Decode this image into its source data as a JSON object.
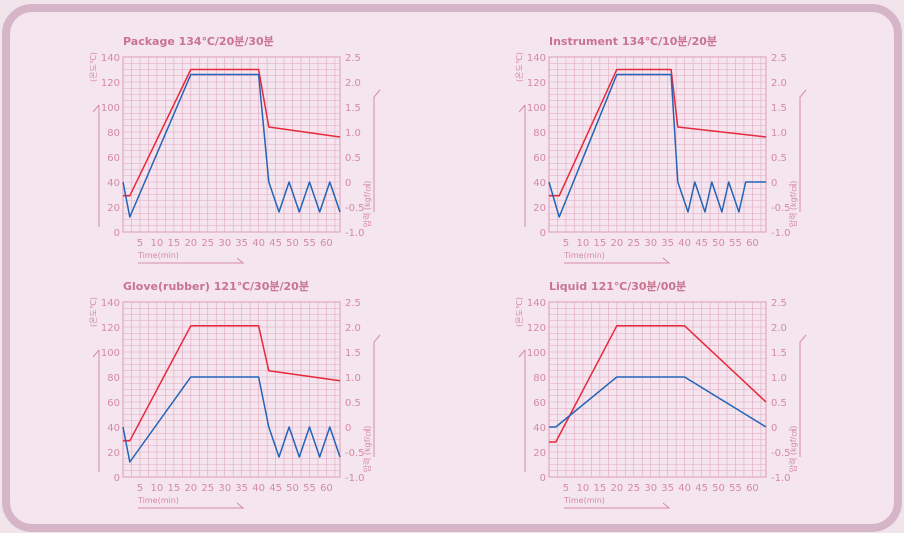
{
  "colors": {
    "background": "#f1e4eb",
    "panel": "#f4e5ee",
    "panel_border": "#d6b5c9",
    "grid": "#e2a9bf",
    "axis_text": "#d68aa5",
    "title": "#c9738f",
    "temperature_line": "#e8283c",
    "pressure_line": "#2364b7"
  },
  "chart_data": [
    {
      "type": "line",
      "title": "Package 134℃/20분/30분",
      "xlabel": "Time(min)",
      "ylabel_left": "(온도℃)",
      "ylabel_right": "압력 (kgf/㎠)",
      "xlim": [
        0,
        64
      ],
      "ylim_left": [
        0,
        140
      ],
      "ylim_right": [
        -1.0,
        2.5
      ],
      "x_ticks": [
        "5",
        "10",
        "15",
        "20",
        "25",
        "30",
        "35",
        "40",
        "45",
        "50",
        "55",
        "60"
      ],
      "y_ticks_left": [
        "0",
        "20",
        "40",
        "60",
        "80",
        "100",
        "120",
        "140"
      ],
      "y_ticks_right": [
        "-1.0",
        "-0.5",
        "0",
        "0.5",
        "1.0",
        "1.5",
        "2.0",
        "2.5"
      ],
      "grid": true,
      "series": [
        {
          "color": "#e8283c",
          "axis": "left",
          "x": [
            0,
            2,
            20,
            40,
            43,
            64
          ],
          "y": [
            29,
            29,
            130,
            130,
            84,
            76
          ]
        },
        {
          "color": "#2364b7",
          "axis": "right",
          "x": [
            0,
            2,
            20,
            40,
            43,
            46,
            49,
            52,
            55,
            58,
            61,
            64
          ],
          "y": [
            0,
            -0.7,
            2.15,
            2.15,
            0,
            -0.6,
            0,
            -0.6,
            0,
            -0.6,
            0,
            -0.6
          ]
        }
      ]
    },
    {
      "type": "line",
      "title": "Instrument 134℃/10분/20분",
      "xlabel": "Time(min)",
      "ylabel_left": "(온도℃)",
      "ylabel_right": "압력 (kgf/㎠)",
      "xlim": [
        0,
        64
      ],
      "ylim_left": [
        0,
        140
      ],
      "ylim_right": [
        -1.0,
        2.5
      ],
      "x_ticks": [
        "5",
        "10",
        "15",
        "20",
        "25",
        "30",
        "35",
        "40",
        "45",
        "50",
        "55",
        "60"
      ],
      "y_ticks_left": [
        "0",
        "20",
        "40",
        "60",
        "80",
        "100",
        "120",
        "140"
      ],
      "y_ticks_right": [
        "-1.0",
        "-0.5",
        "0",
        "0.5",
        "1.0",
        "1.5",
        "2.0",
        "2.5"
      ],
      "grid": true,
      "series": [
        {
          "color": "#e8283c",
          "axis": "left",
          "x": [
            0,
            3,
            20,
            36,
            38,
            64
          ],
          "y": [
            29,
            29,
            130,
            130,
            84,
            76
          ]
        },
        {
          "color": "#2364b7",
          "axis": "right",
          "x": [
            0,
            3,
            20,
            36,
            38,
            41,
            43,
            46,
            48,
            51,
            53,
            56,
            58,
            64
          ],
          "y": [
            0,
            -0.7,
            2.15,
            2.15,
            0,
            -0.6,
            0,
            -0.6,
            0,
            -0.6,
            0,
            -0.6,
            0,
            0
          ]
        }
      ]
    },
    {
      "type": "line",
      "title": "Glove(rubber) 121℃/30분/20분",
      "xlabel": "Time(min)",
      "ylabel_left": "(온도℃)",
      "ylabel_right": "압력 (kgf/㎠)",
      "xlim": [
        0,
        64
      ],
      "ylim_left": [
        0,
        140
      ],
      "ylim_right": [
        -1.0,
        2.5
      ],
      "x_ticks": [
        "5",
        "10",
        "15",
        "20",
        "25",
        "30",
        "35",
        "40",
        "45",
        "50",
        "55",
        "60"
      ],
      "y_ticks_left": [
        "0",
        "20",
        "40",
        "60",
        "80",
        "100",
        "120",
        "140"
      ],
      "y_ticks_right": [
        "-1.0",
        "-0.5",
        "0",
        "0.5",
        "1.0",
        "1.5",
        "2.0",
        "2.5"
      ],
      "grid": true,
      "series": [
        {
          "color": "#e8283c",
          "axis": "left",
          "x": [
            0,
            2,
            20,
            40,
            43,
            64
          ],
          "y": [
            29,
            29,
            121,
            121,
            85,
            77
          ]
        },
        {
          "color": "#2364b7",
          "axis": "right",
          "x": [
            0,
            2,
            20,
            40,
            43,
            46,
            49,
            52,
            55,
            58,
            61,
            64
          ],
          "y": [
            0,
            -0.7,
            1.0,
            1.0,
            0,
            -0.6,
            0,
            -0.6,
            0,
            -0.6,
            0,
            -0.6
          ]
        }
      ]
    },
    {
      "type": "line",
      "title": "Liquid 121℃/30분/00분",
      "xlabel": "Time(min)",
      "ylabel_left": "(온도℃)",
      "ylabel_right": "압력 (kgf/㎠)",
      "xlim": [
        0,
        64
      ],
      "ylim_left": [
        0,
        140
      ],
      "ylim_right": [
        -1.0,
        2.5
      ],
      "x_ticks": [
        "5",
        "10",
        "15",
        "20",
        "25",
        "30",
        "35",
        "40",
        "45",
        "50",
        "55",
        "60"
      ],
      "y_ticks_left": [
        "0",
        "20",
        "40",
        "60",
        "80",
        "100",
        "120",
        "140"
      ],
      "y_ticks_right": [
        "-1.0",
        "-0.5",
        "0",
        "0.5",
        "1.0",
        "1.5",
        "2.0",
        "2.5"
      ],
      "grid": true,
      "series": [
        {
          "color": "#e8283c",
          "axis": "left",
          "x": [
            0,
            2,
            20,
            40,
            64
          ],
          "y": [
            28,
            28,
            121,
            121,
            60
          ]
        },
        {
          "color": "#2364b7",
          "axis": "right",
          "x": [
            0,
            2,
            20,
            40,
            64
          ],
          "y": [
            0,
            0,
            1.0,
            1.0,
            0
          ]
        }
      ]
    }
  ]
}
